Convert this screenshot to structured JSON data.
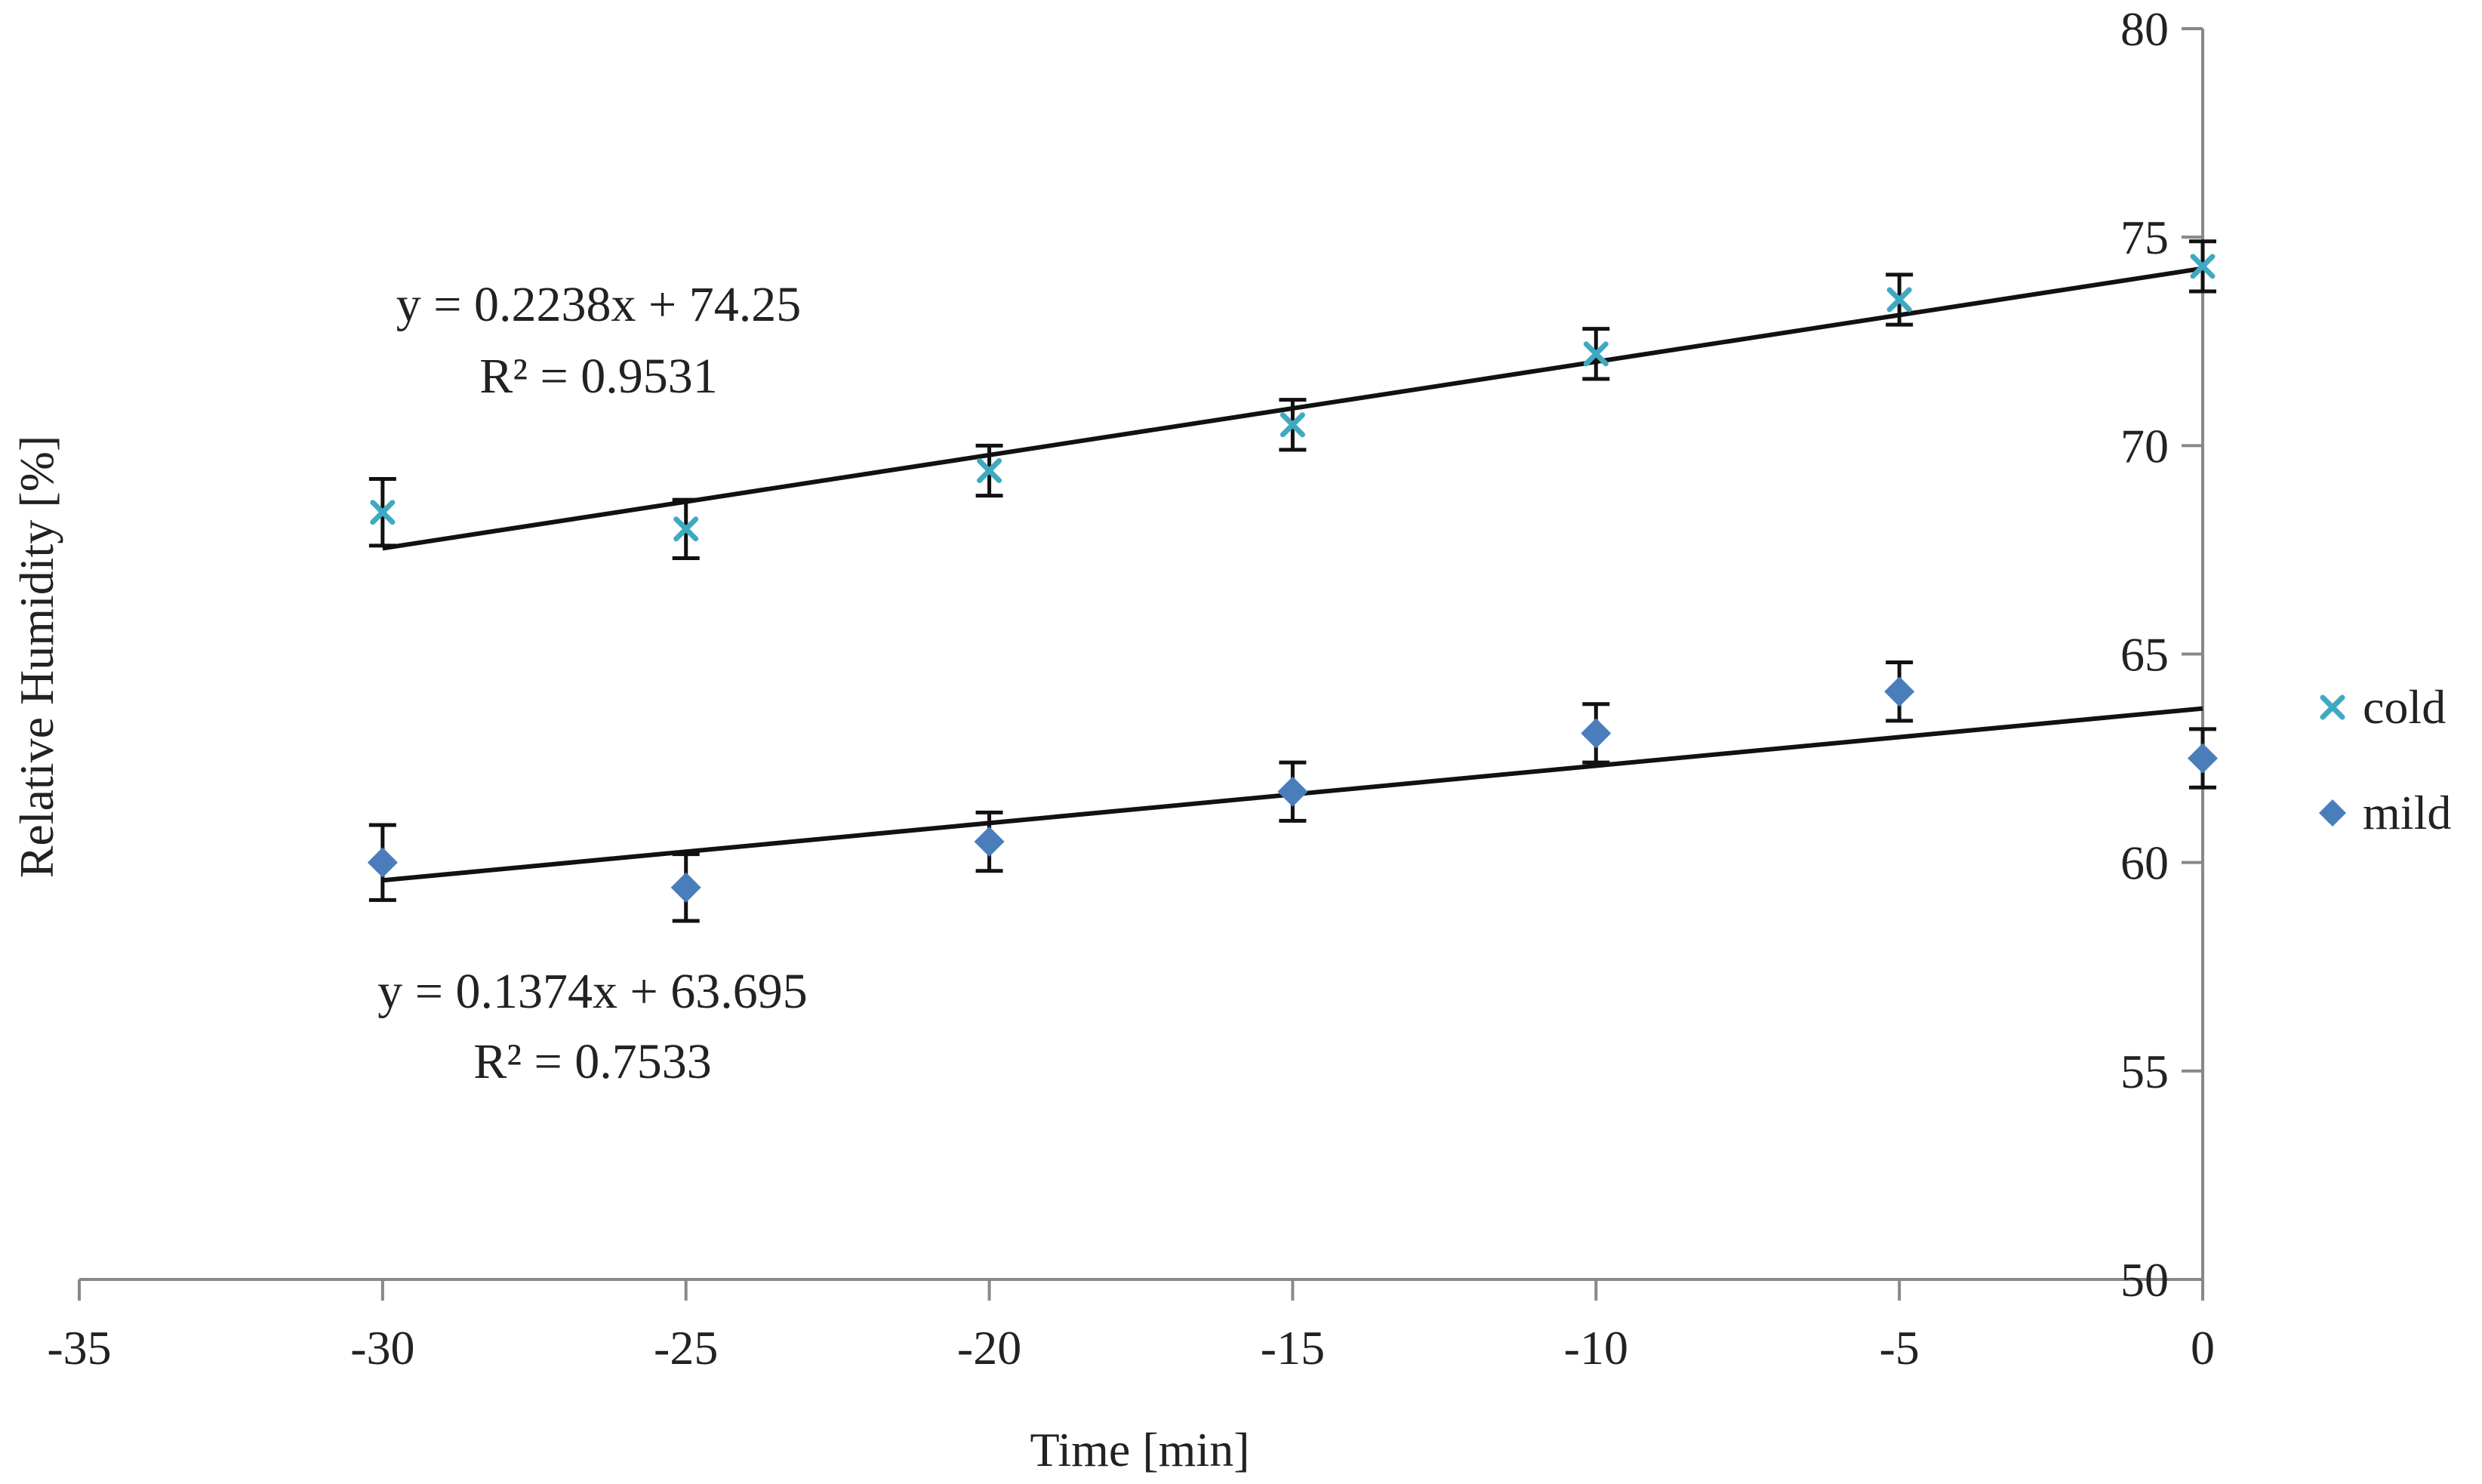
{
  "chart_data": {
    "type": "scatter",
    "xlabel": "Time [min]",
    "ylabel": "Relative Humidity [%]",
    "xlim": [
      -35,
      0
    ],
    "ylim": [
      50,
      80
    ],
    "x_ticks": [
      -35,
      -30,
      -25,
      -20,
      -15,
      -10,
      -5,
      0
    ],
    "y_ticks": [
      50,
      55,
      60,
      65,
      70,
      75,
      80
    ],
    "x_tick_labels": [
      "-35",
      "-30",
      "-25",
      "-20",
      "-15",
      "-10",
      "-5",
      "0"
    ],
    "y_tick_labels": [
      "50",
      "55",
      "60",
      "65",
      "70",
      "75",
      "80"
    ],
    "y_axis_position": "right",
    "grid": false,
    "legend_position": "right",
    "series": [
      {
        "name": "cold",
        "marker": "x",
        "color": "#3FA9C2",
        "x": [
          -30,
          -25,
          -20,
          -15,
          -10,
          -5,
          0
        ],
        "y": [
          68.4,
          68.0,
          69.4,
          70.5,
          72.2,
          73.5,
          74.3
        ],
        "error": [
          0.8,
          0.7,
          0.6,
          0.6,
          0.6,
          0.6,
          0.6
        ],
        "trendline": {
          "slope": 0.2238,
          "intercept": 74.25,
          "x_range": [
            -30,
            0
          ]
        },
        "equation": "y = 0.2238x + 74.25",
        "r_squared": "R² = 0.9531"
      },
      {
        "name": "mild",
        "marker": "diamond",
        "color": "#4A7EBB",
        "x": [
          -30,
          -25,
          -20,
          -15,
          -10,
          -5,
          0
        ],
        "y": [
          60.0,
          59.4,
          60.5,
          61.7,
          63.1,
          64.1,
          62.5
        ],
        "error": [
          0.9,
          0.8,
          0.7,
          0.7,
          0.7,
          0.7,
          0.7
        ],
        "trendline": {
          "slope": 0.1374,
          "intercept": 63.695,
          "x_range": [
            -30,
            0
          ]
        },
        "equation": "y = 0.1374x + 63.695",
        "r_squared": "R² = 0.7533"
      }
    ]
  },
  "colors": {
    "axis": "#888888",
    "trendline": "#111111",
    "errorbar": "#111111",
    "text": "#222222"
  }
}
